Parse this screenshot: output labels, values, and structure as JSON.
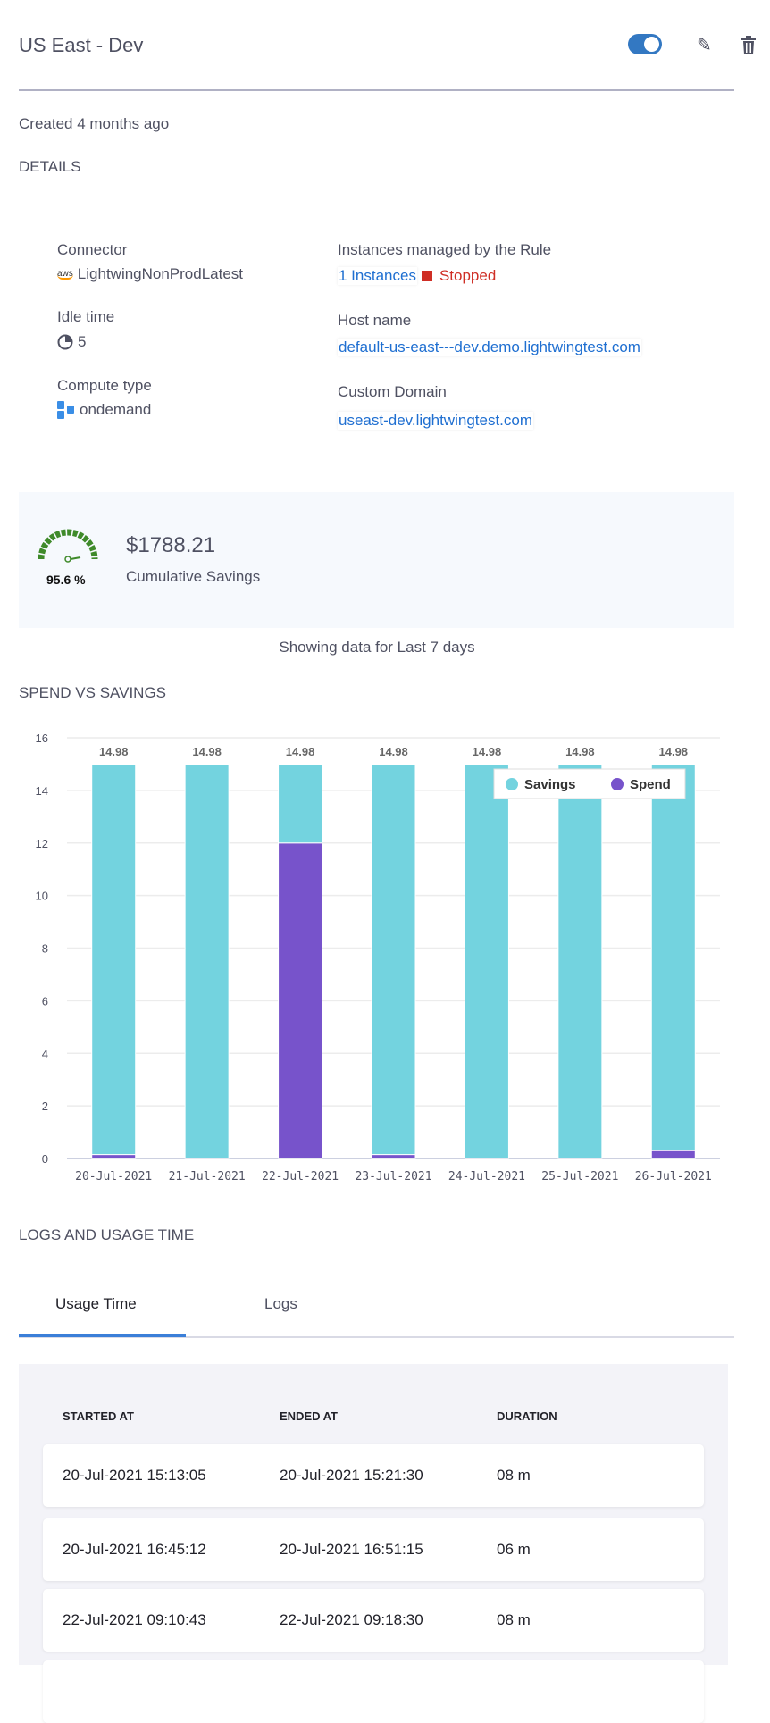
{
  "header": {
    "title": "US East - Dev",
    "toggle_on": true
  },
  "created": "Created 4 months ago",
  "details": {
    "heading": "DETAILS",
    "connector_label": "Connector",
    "connector_value": "LightwingNonProdLatest",
    "connector_icon": "aws-icon",
    "idle_label": "Idle time",
    "idle_value": "5",
    "compute_label": "Compute type",
    "compute_value": "ondemand",
    "instances_label": "Instances managed by the Rule",
    "instances_value": "1 Instances",
    "instances_status": "Stopped",
    "host_label": "Host name",
    "host_value": "default-us-east---dev.demo.lightwingtest.com",
    "domain_label": "Custom Domain",
    "domain_value": "useast-dev.lightwingtest.com"
  },
  "savings": {
    "amount": "$1788.21",
    "label": "Cumulative Savings",
    "percent": "95.6 %",
    "percent_value": 95.6
  },
  "range_text": "Showing data for Last 7 days",
  "chart_heading": "SPEND VS SAVINGS",
  "chart_data": {
    "type": "bar",
    "stacked": true,
    "categories": [
      "20-Jul-2021",
      "21-Jul-2021",
      "22-Jul-2021",
      "23-Jul-2021",
      "24-Jul-2021",
      "25-Jul-2021",
      "26-Jul-2021"
    ],
    "series": [
      {
        "name": "Savings",
        "color": "#73d3df",
        "values": [
          14.83,
          14.98,
          2.98,
          14.83,
          14.98,
          14.98,
          14.68
        ]
      },
      {
        "name": "Spend",
        "color": "#7753cb",
        "values": [
          0.15,
          0,
          12.0,
          0.15,
          0,
          0,
          0.3
        ]
      }
    ],
    "totals_labels": [
      "14.98",
      "14.98",
      "14.98",
      "14.98",
      "14.98",
      "14.98",
      "14.98"
    ],
    "yticks": [
      "0",
      "2",
      "4",
      "6",
      "8",
      "10",
      "12",
      "14",
      "16"
    ],
    "ylim": [
      0,
      16
    ],
    "grid": true,
    "legend": "top-right"
  },
  "logs": {
    "heading": "LOGS AND USAGE TIME",
    "tabs": [
      "Usage Time",
      "Logs"
    ],
    "active_tab": 0,
    "columns": [
      "STARTED AT",
      "ENDED AT",
      "DURATION"
    ],
    "rows": [
      [
        "20-Jul-2021 15:13:05",
        "20-Jul-2021 15:21:30",
        "08 m"
      ],
      [
        "20-Jul-2021 16:45:12",
        "20-Jul-2021 16:51:15",
        "06 m"
      ],
      [
        "22-Jul-2021 09:10:43",
        "22-Jul-2021 09:18:30",
        "08 m"
      ]
    ]
  }
}
